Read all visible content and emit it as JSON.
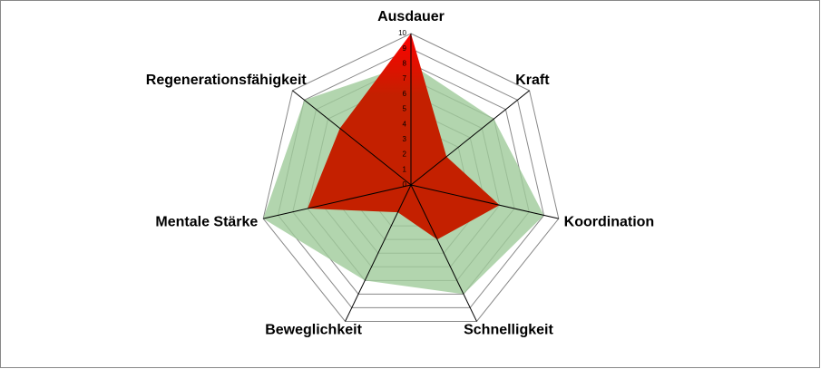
{
  "chart_data": {
    "type": "radar",
    "categories": [
      "Ausdauer",
      "Kraft",
      "Koordination",
      "Schnelligkeit",
      "Beweglichkeit",
      "Mentale Stärke",
      "Regenerationsfähigkeit"
    ],
    "series": [
      {
        "color": "#9fca9a",
        "values": [
          8,
          7,
          9,
          8,
          7,
          10,
          9
        ]
      },
      {
        "color": "#c42000",
        "values": [
          10,
          3,
          6,
          4,
          2,
          7,
          6
        ]
      }
    ],
    "ylim": [
      0,
      10
    ],
    "yticks": [
      0,
      1,
      2,
      3,
      4,
      5,
      6,
      7,
      8,
      9,
      10
    ],
    "grid": true
  }
}
